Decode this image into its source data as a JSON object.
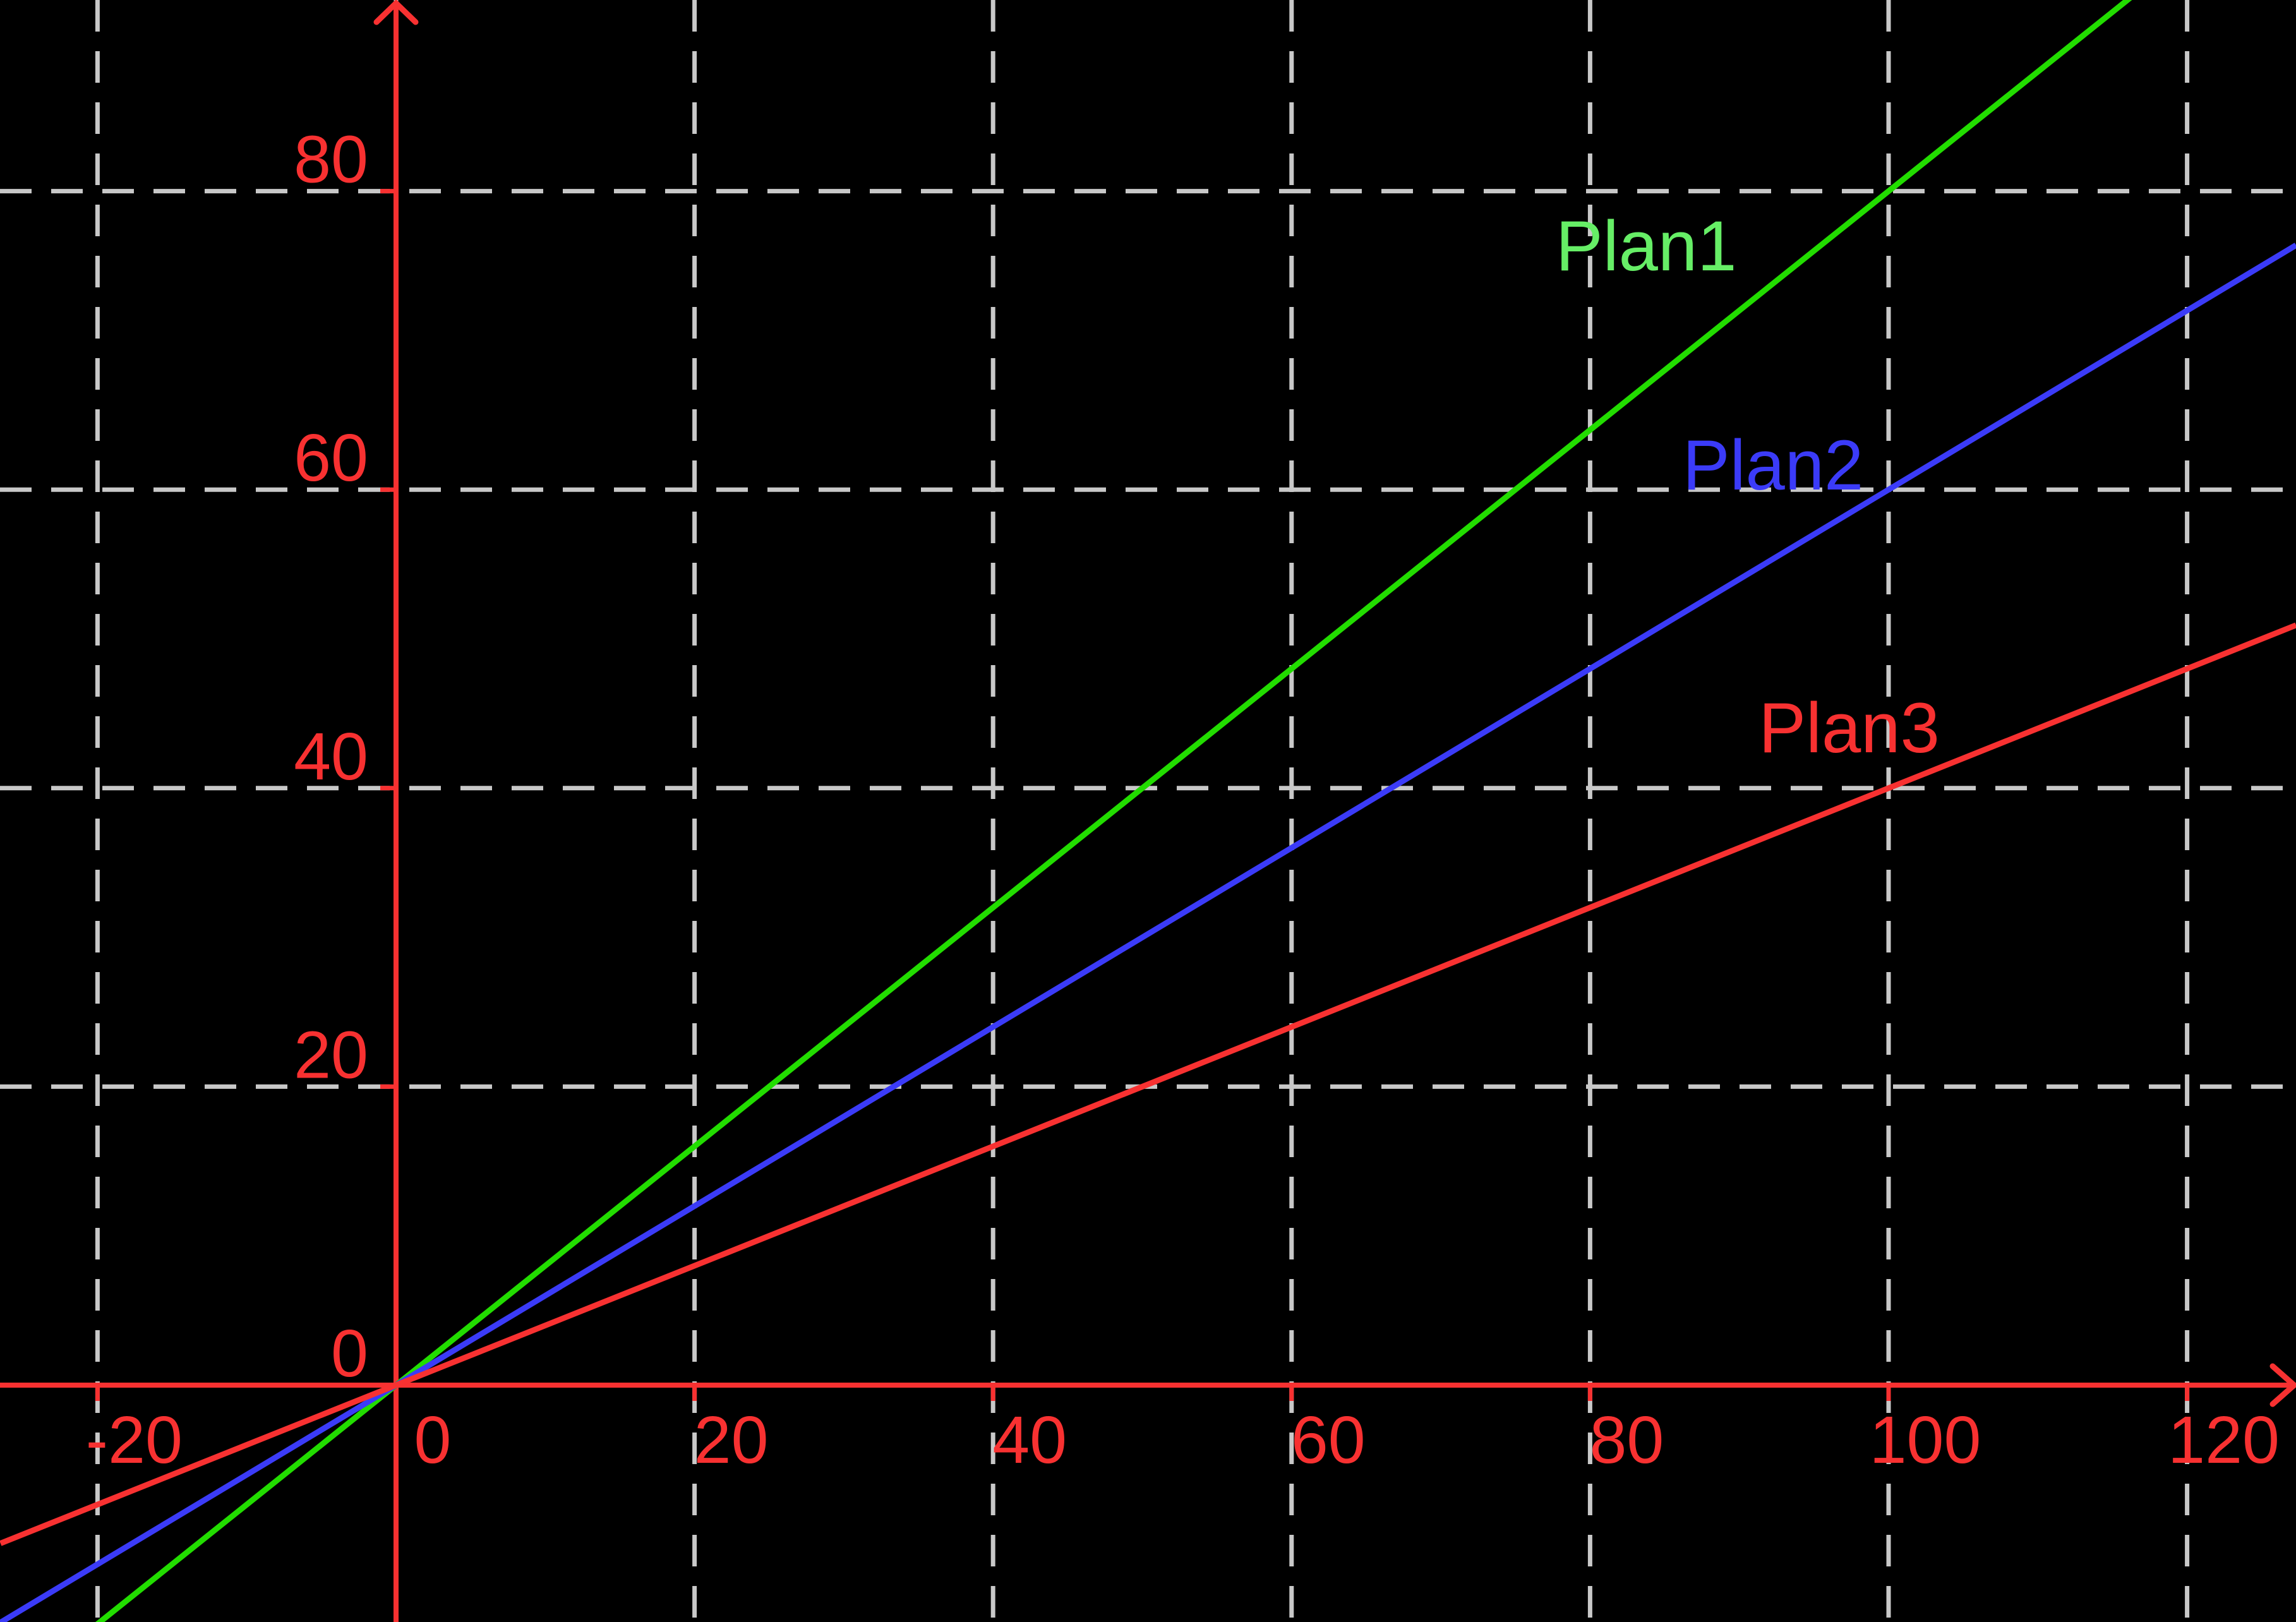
{
  "chart_data": {
    "type": "line",
    "title": "",
    "xlabel": "",
    "ylabel": "",
    "background_color": "#000000",
    "axis_color": "#f83131",
    "grid_color": "#c8c8c8",
    "grid": true,
    "grid_style": "dashed",
    "xlim": [
      -26.5,
      127.3
    ],
    "ylim": [
      -15.9,
      92.8
    ],
    "x_ticks": [
      -20,
      0,
      20,
      40,
      60,
      80,
      100,
      120
    ],
    "y_ticks": [
      0,
      20,
      40,
      60,
      80
    ],
    "x_gridlines": [
      -20,
      0,
      20,
      40,
      60,
      80,
      100,
      120
    ],
    "y_gridlines": [
      20,
      40,
      60,
      80
    ],
    "legend_position": "labels-next-to-lines",
    "series": [
      {
        "name": "plan1",
        "label": "Plan1",
        "slope": 0.8,
        "intercept": 0,
        "line_color": "#22dd00",
        "label_color": "#66ee66",
        "label_anchor_data": {
          "x": 77.7,
          "y": 74.7
        },
        "points": [
          {
            "x": 0,
            "y": 0
          },
          {
            "x": 50,
            "y": 40
          },
          {
            "x": 100,
            "y": 80
          }
        ]
      },
      {
        "name": "plan2",
        "label": "Plan2",
        "slope": 0.6,
        "intercept": 0,
        "line_color": "#3b3bf8",
        "label_color": "#3b3bf8",
        "label_anchor_data": {
          "x": 86.2,
          "y": 60.0
        },
        "points": [
          {
            "x": 0,
            "y": 0
          },
          {
            "x": 50,
            "y": 30
          },
          {
            "x": 100,
            "y": 60
          }
        ]
      },
      {
        "name": "plan3",
        "label": "Plan3",
        "slope": 0.4,
        "intercept": 0,
        "line_color": "#f83131",
        "label_color": "#f83131",
        "label_anchor_data": {
          "x": 91.3,
          "y": 42.4
        },
        "points": [
          {
            "x": 0,
            "y": 0
          },
          {
            "x": 50,
            "y": 20
          },
          {
            "x": 100,
            "y": 40
          }
        ]
      }
    ]
  }
}
